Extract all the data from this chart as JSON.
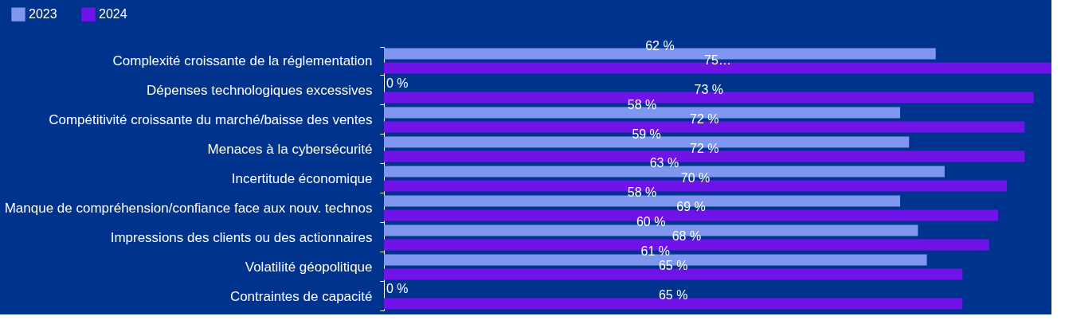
{
  "chart_data": {
    "type": "bar",
    "orientation": "horizontal",
    "legend": "top left",
    "categories": [
      "Complexité croissante de la réglementation",
      "Dépenses technologiques excessives",
      "Compétitivité croissante du marché/baisse des ventes",
      "Menaces à la cybersécurité",
      "Incertitude économique",
      "Manque de compréhension/confiance face aux nouv. technos",
      "Impressions des clients ou des actionnaires",
      "Volatilité géopolitique",
      "Contraintes de capacité"
    ],
    "series": [
      {
        "name": "2023",
        "color": "#7f96ee",
        "values": [
          62,
          0,
          58,
          59,
          63,
          58,
          60,
          61,
          0
        ],
        "value_labels": [
          "62 %",
          "0 %",
          "58 %",
          "59 %",
          "63 %",
          "58 %",
          "60 %",
          "61 %",
          "0 %"
        ]
      },
      {
        "name": "2024",
        "color": "#7013e8",
        "values": [
          75,
          73,
          72,
          72,
          70,
          69,
          68,
          65,
          65
        ],
        "value_labels": [
          "75…",
          "73 %",
          "72 %",
          "72 %",
          "70 %",
          "69 %",
          "68 %",
          "65 %",
          "65 %"
        ]
      }
    ]
  }
}
